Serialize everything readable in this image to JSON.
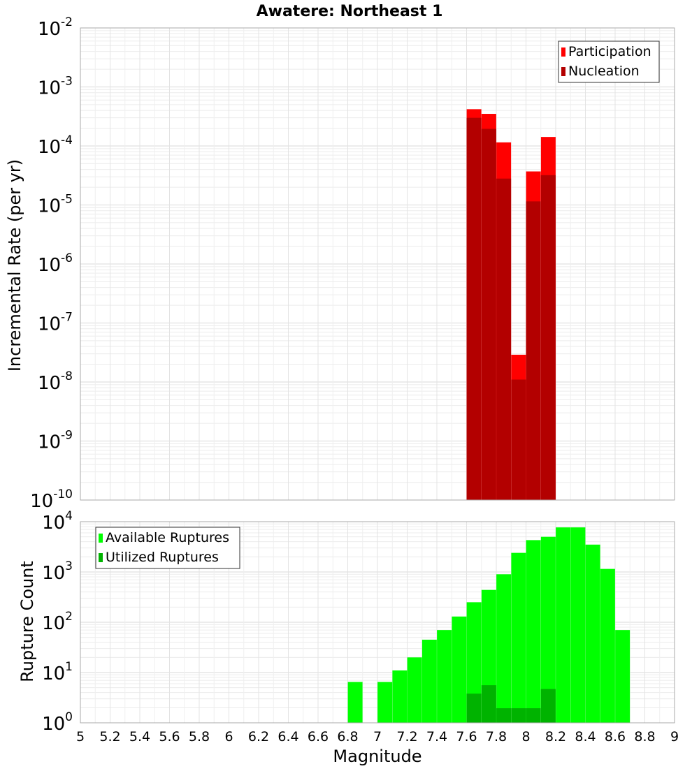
{
  "chart_data": [
    {
      "type": "bar",
      "title": "Awatere: Northeast 1",
      "ylabel": "Incremental Rate (per yr)",
      "xlabel": "",
      "y_scale": "log",
      "xlim": [
        5,
        9
      ],
      "ylim": [
        1e-10,
        0.01
      ],
      "grid": true,
      "legend_position": "top-right",
      "y_tick_exponents": [
        "-2",
        "-3",
        "-4",
        "-5",
        "-6",
        "-7",
        "-8",
        "-9",
        "-10"
      ],
      "y_tick_base": "10",
      "series": [
        {
          "name": "Participation",
          "color": "#ff0000",
          "points": [
            {
              "x": 7.65,
              "y": 0.00042
            },
            {
              "x": 7.75,
              "y": 0.00035
            },
            {
              "x": 7.85,
              "y": 0.000115
            },
            {
              "x": 7.95,
              "y": 2.9e-08
            },
            {
              "x": 8.05,
              "y": 3.7e-05
            },
            {
              "x": 8.15,
              "y": 0.000142
            }
          ]
        },
        {
          "name": "Nucleation",
          "color": "#b30000",
          "points": [
            {
              "x": 7.65,
              "y": 0.0003
            },
            {
              "x": 7.75,
              "y": 0.000195
            },
            {
              "x": 7.85,
              "y": 2.8e-05
            },
            {
              "x": 7.95,
              "y": 1.1e-08
            },
            {
              "x": 8.05,
              "y": 1.15e-05
            },
            {
              "x": 8.15,
              "y": 3.2e-05
            }
          ]
        }
      ]
    },
    {
      "type": "bar",
      "title": "",
      "ylabel": "Rupture Count",
      "xlabel": "Magnitude",
      "y_scale": "log",
      "xlim": [
        5,
        9
      ],
      "ylim": [
        1,
        10000
      ],
      "grid": true,
      "legend_position": "top-left",
      "x_ticks": [
        "5",
        "5.2",
        "5.4",
        "5.6",
        "5.8",
        "6",
        "6.2",
        "6.4",
        "6.6",
        "6.8",
        "7",
        "7.2",
        "7.4",
        "7.6",
        "7.8",
        "8",
        "8.2",
        "8.4",
        "8.6",
        "8.8",
        "9"
      ],
      "y_tick_exponents": [
        "4",
        "3",
        "2",
        "1",
        "0"
      ],
      "y_tick_base": "10",
      "series": [
        {
          "name": "Available Ruptures",
          "color": "#00ff00",
          "points": [
            {
              "x": 6.85,
              "y": 6.5
            },
            {
              "x": 7.05,
              "y": 6.5
            },
            {
              "x": 7.15,
              "y": 11
            },
            {
              "x": 7.25,
              "y": 20
            },
            {
              "x": 7.35,
              "y": 45
            },
            {
              "x": 7.45,
              "y": 70
            },
            {
              "x": 7.55,
              "y": 130
            },
            {
              "x": 7.65,
              "y": 250
            },
            {
              "x": 7.75,
              "y": 440
            },
            {
              "x": 7.85,
              "y": 900
            },
            {
              "x": 7.95,
              "y": 2400
            },
            {
              "x": 8.05,
              "y": 4300
            },
            {
              "x": 8.15,
              "y": 5000
            },
            {
              "x": 8.25,
              "y": 7700
            },
            {
              "x": 8.35,
              "y": 7700
            },
            {
              "x": 8.45,
              "y": 3500
            },
            {
              "x": 8.55,
              "y": 1150
            },
            {
              "x": 8.65,
              "y": 70
            }
          ]
        },
        {
          "name": "Utilized Ruptures",
          "color": "#00b300",
          "points": [
            {
              "x": 7.65,
              "y": 3.8
            },
            {
              "x": 7.75,
              "y": 5.6
            },
            {
              "x": 7.85,
              "y": 1.95
            },
            {
              "x": 7.95,
              "y": 1.95
            },
            {
              "x": 8.05,
              "y": 1.95
            },
            {
              "x": 8.15,
              "y": 4.7
            }
          ]
        }
      ]
    }
  ]
}
